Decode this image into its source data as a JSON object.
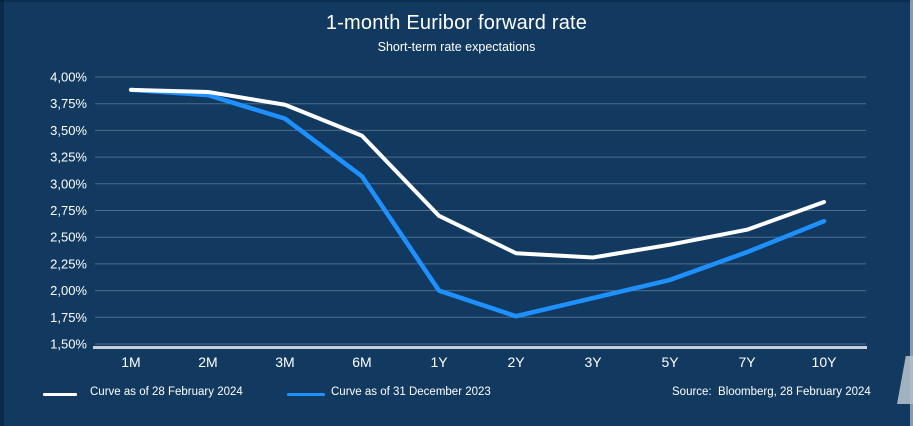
{
  "title": "1-month Euribor forward rate",
  "subtitle": "Short-term rate expectations",
  "source": "Source:  Bloomberg, 28 February 2024",
  "colors": {
    "background": "#123a60",
    "text": "#ffffff",
    "gridline": "#4f6d8c",
    "axis": "#c7d0d9",
    "series_feb2024": "#ffffff",
    "series_dec2023": "#1e90ff"
  },
  "chart_data": {
    "type": "line",
    "categories": [
      "1M",
      "2M",
      "3M",
      "6M",
      "1Y",
      "2Y",
      "3Y",
      "5Y",
      "7Y",
      "10Y"
    ],
    "series": [
      {
        "name": "Curve as of 28 February 2024",
        "color": "#ffffff",
        "width": 4,
        "values": [
          3.88,
          3.86,
          3.74,
          3.45,
          2.7,
          2.35,
          2.31,
          2.43,
          2.57,
          2.83
        ]
      },
      {
        "name": "Curve as of 31 December 2023",
        "color": "#1e90ff",
        "width": 4.5,
        "values": [
          3.88,
          3.83,
          3.61,
          3.07,
          2.0,
          1.76,
          1.93,
          2.1,
          2.36,
          2.65
        ]
      }
    ],
    "y_ticks": {
      "labels": [
        "4,00%",
        "3,75%",
        "3,50%",
        "3,25%",
        "3,00%",
        "2,75%",
        "2,50%",
        "2,25%",
        "2,00%",
        "1,75%",
        "1,50%"
      ],
      "values": [
        4.0,
        3.75,
        3.5,
        3.25,
        3.0,
        2.75,
        2.5,
        2.25,
        2.0,
        1.75,
        1.5
      ]
    },
    "ylim": [
      1.5,
      4.0
    ],
    "grid": true,
    "legend_position": "bottom"
  }
}
